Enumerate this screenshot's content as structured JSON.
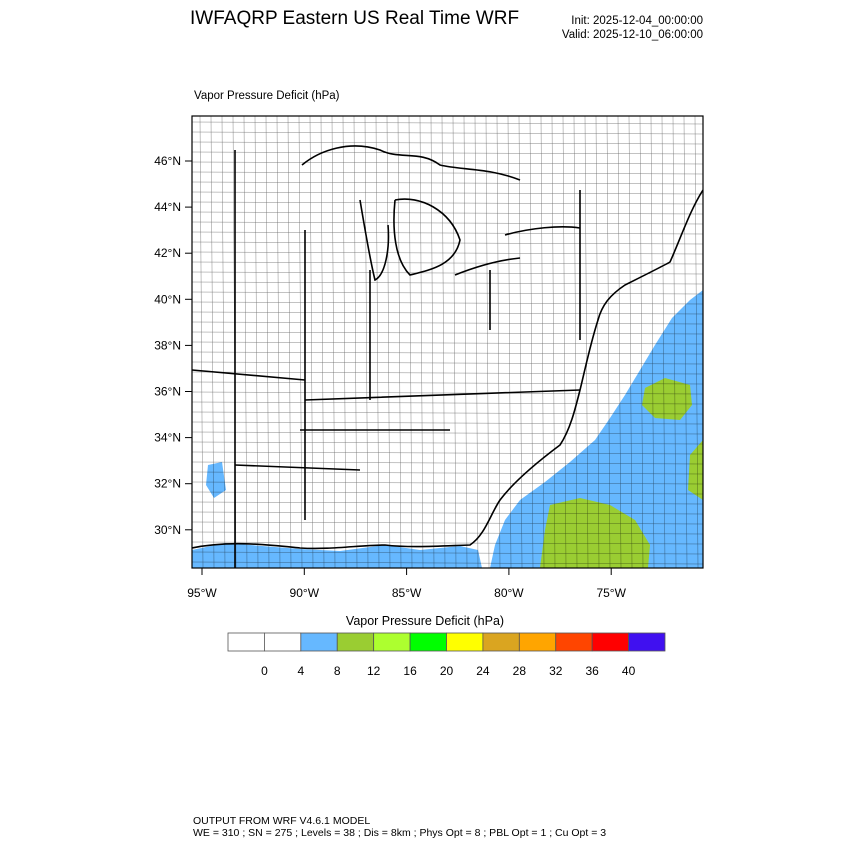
{
  "header": {
    "title": "IWFAQRP Eastern US Real Time WRF",
    "init": "Init: 2025-12-04_00:00:00",
    "valid": "Valid: 2025-12-10_06:00:00"
  },
  "map": {
    "field_label": "Vapor Pressure Deficit   (hPa)",
    "lat_labels": [
      "46°N",
      "44°N",
      "42°N",
      "40°N",
      "38°N",
      "36°N",
      "34°N",
      "32°N",
      "30°N"
    ],
    "lon_labels": [
      "95°W",
      "90°W",
      "85°W",
      "80°W",
      "75°W"
    ],
    "ocean_color": "#66b8ff",
    "green_color": "#9acd32"
  },
  "colorbar": {
    "title": "Vapor Pressure Deficit  (hPa)",
    "colors": [
      "#ffffff",
      "#ffffff",
      "#66b8ff",
      "#9acd32",
      "#adff2f",
      "#00ff00",
      "#ffff00",
      "#daa520",
      "#ffa500",
      "#ff4500",
      "#ff0000",
      "#4010f0"
    ],
    "labels": [
      "0",
      "4",
      "8",
      "12",
      "16",
      "20",
      "24",
      "28",
      "32",
      "36",
      "40"
    ]
  },
  "footer": {
    "line1": "OUTPUT FROM WRF V4.6.1 MODEL",
    "line2": "WE = 310 ; SN = 275 ; Levels = 38 ; Dis = 8km ; Phys Opt = 8 ; PBL Opt = 1 ; Cu Opt = 3"
  }
}
